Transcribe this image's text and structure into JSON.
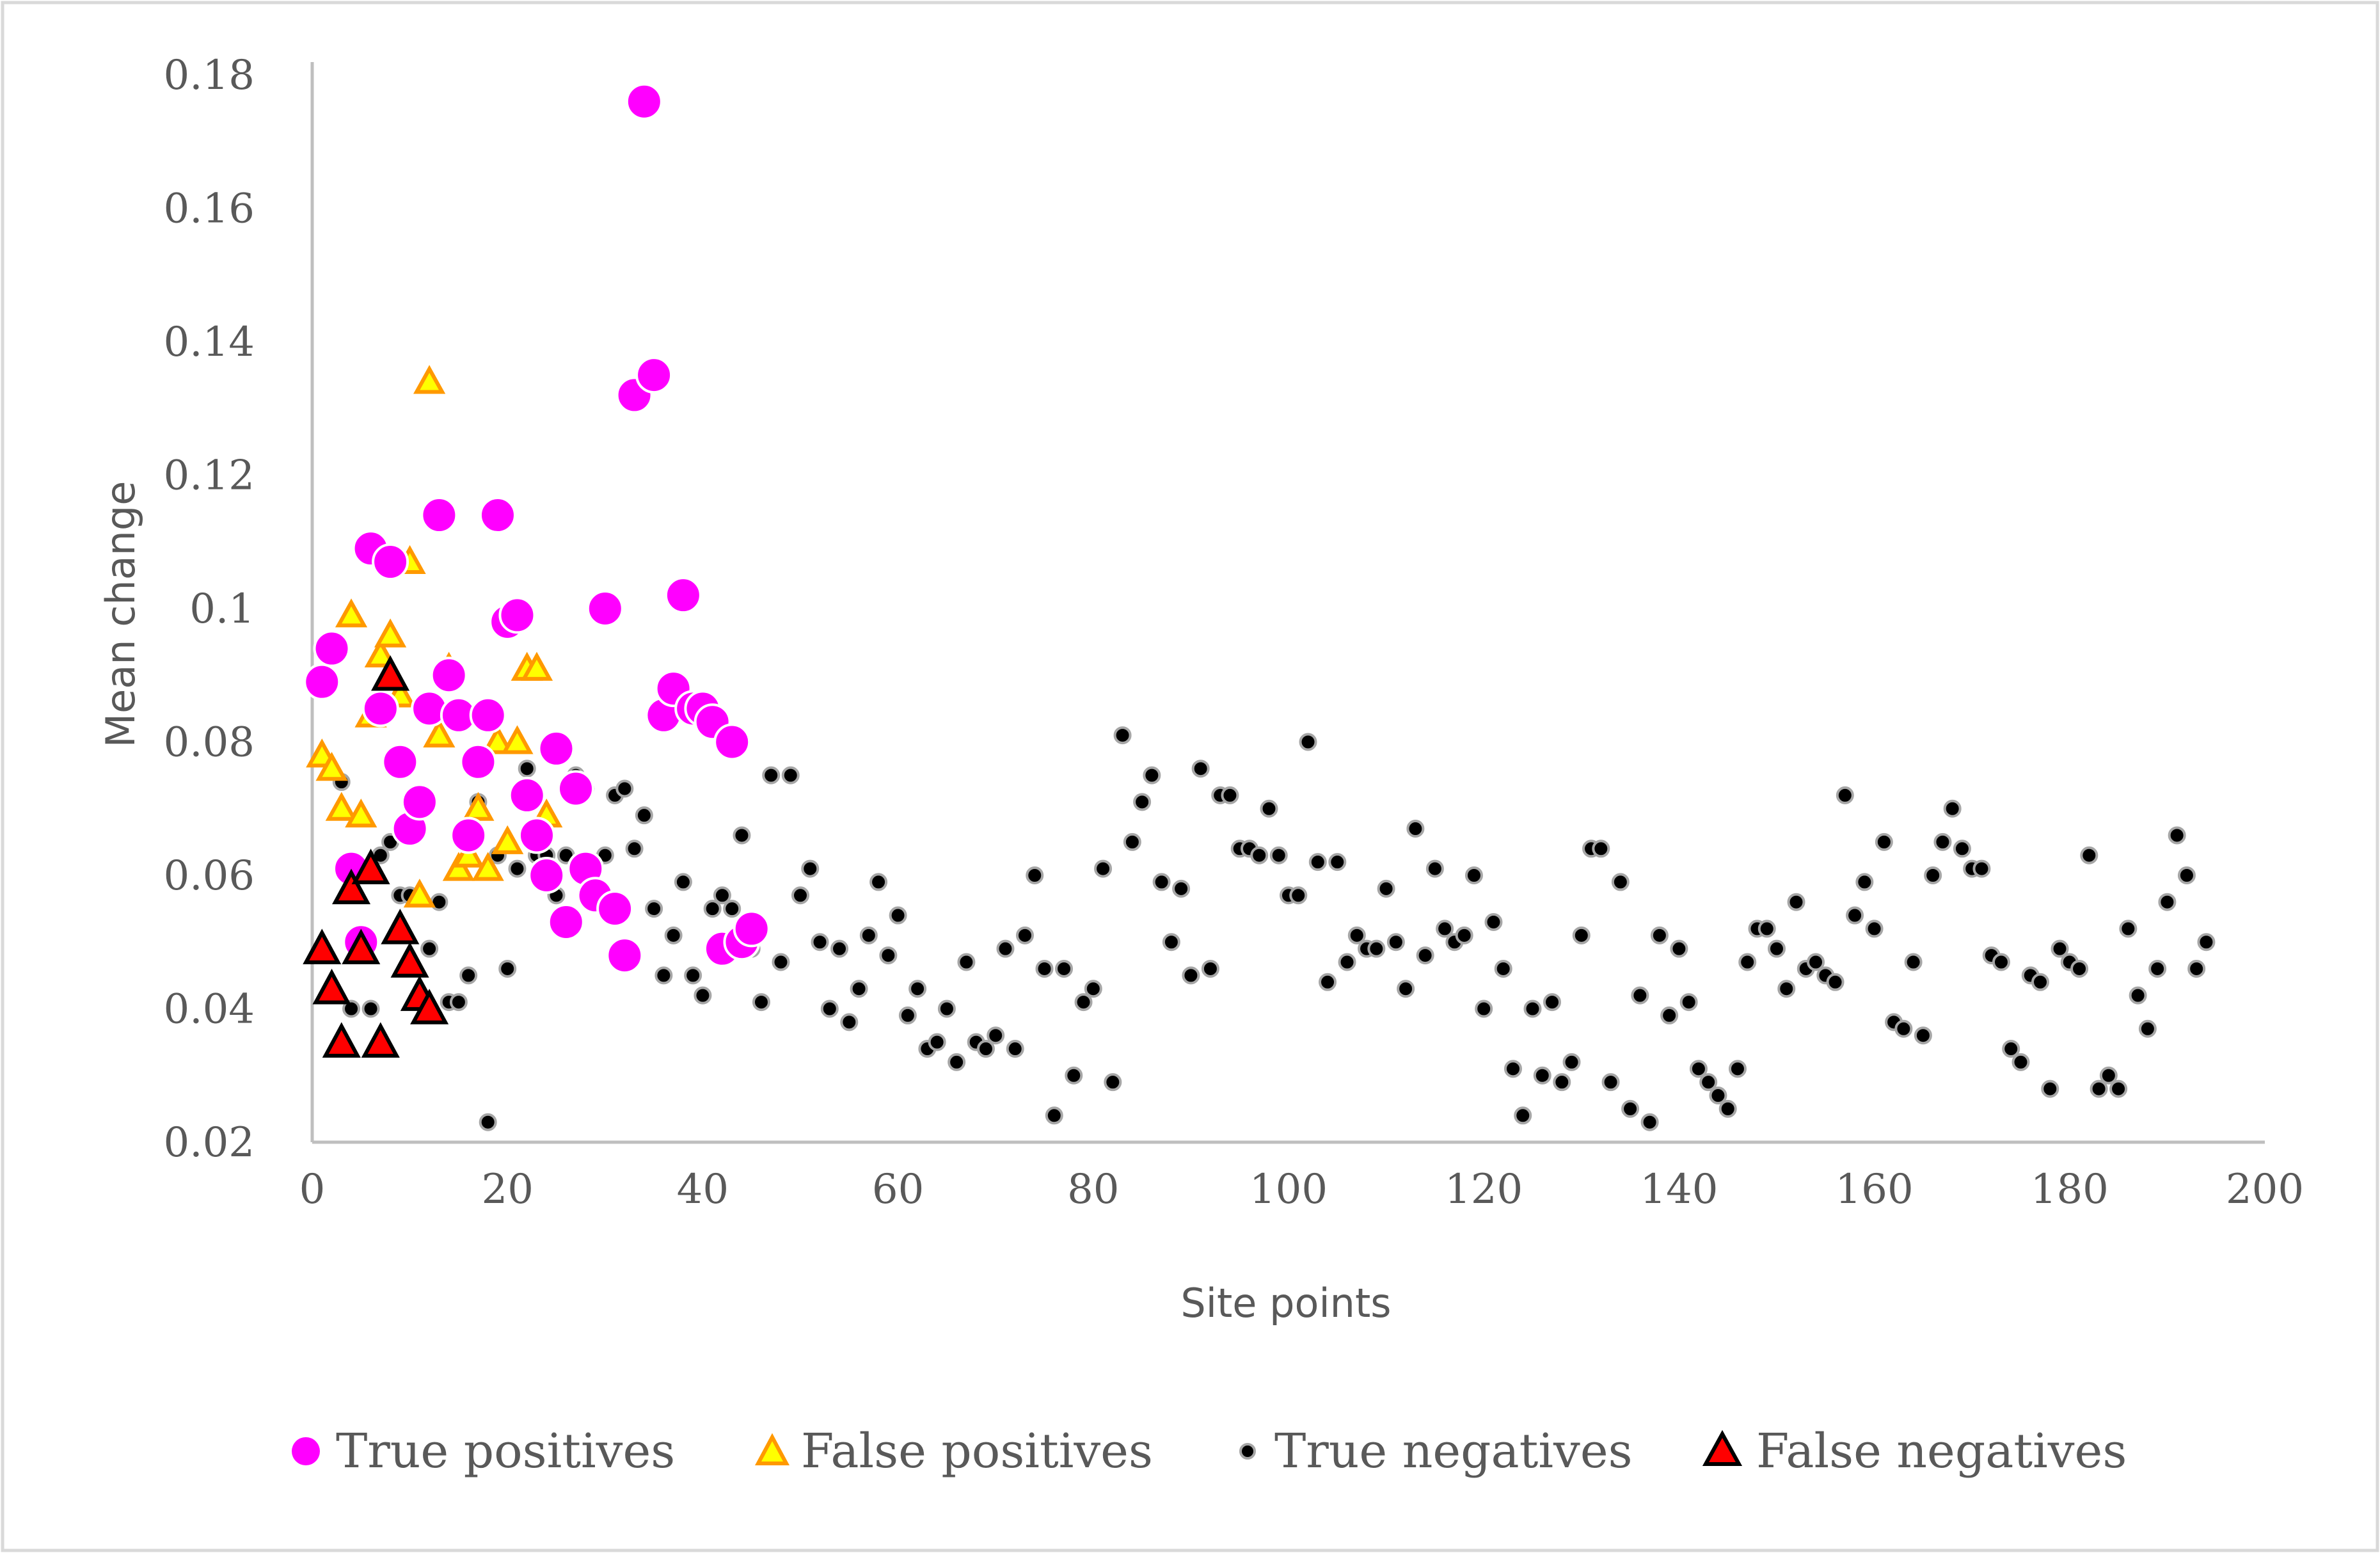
{
  "chart_data": {
    "type": "scatter",
    "title": "",
    "xlabel": "Site points",
    "ylabel": "Mean change",
    "xlim": [
      0,
      200
    ],
    "ylim": [
      0.02,
      0.18
    ],
    "xticks": [
      "0",
      "20",
      "40",
      "60",
      "80",
      "100",
      "120",
      "140",
      "160",
      "180",
      "200"
    ],
    "yticks": [
      "0.02",
      "0.04",
      "0.06",
      "0.08",
      "0.1",
      "0.12",
      "0.14",
      "0.16",
      "0.18"
    ],
    "grid": false,
    "legend_position": "bottom",
    "colors": {
      "true_positives": "#ff00ff",
      "false_positives_fill": "#ffff00",
      "false_positives_edge": "#ff9900",
      "true_negatives": "#000000",
      "false_negatives_fill": "#ff0000",
      "axis": "#bfbfbf"
    },
    "series": [
      {
        "name": "True positives",
        "marker": "circle-large",
        "points": [
          [
            1,
            0.089
          ],
          [
            2,
            0.094
          ],
          [
            4,
            0.061
          ],
          [
            5,
            0.05
          ],
          [
            6,
            0.109
          ],
          [
            7,
            0.085
          ],
          [
            8,
            0.107
          ],
          [
            9,
            0.077
          ],
          [
            10,
            0.067
          ],
          [
            11,
            0.071
          ],
          [
            12,
            0.085
          ],
          [
            13,
            0.114
          ],
          [
            14,
            0.09
          ],
          [
            15,
            0.084
          ],
          [
            16,
            0.066
          ],
          [
            17,
            0.077
          ],
          [
            18,
            0.084
          ],
          [
            19,
            0.114
          ],
          [
            20,
            0.098
          ],
          [
            21,
            0.099
          ],
          [
            22,
            0.072
          ],
          [
            23,
            0.066
          ],
          [
            24,
            0.06
          ],
          [
            25,
            0.079
          ],
          [
            26,
            0.053
          ],
          [
            27,
            0.073
          ],
          [
            28,
            0.061
          ],
          [
            29,
            0.057
          ],
          [
            30,
            0.1
          ],
          [
            31,
            0.055
          ],
          [
            32,
            0.048
          ],
          [
            33,
            0.132
          ],
          [
            34,
            0.176
          ],
          [
            35,
            0.135
          ],
          [
            36,
            0.084
          ],
          [
            37,
            0.088
          ],
          [
            38,
            0.102
          ],
          [
            39,
            0.085
          ],
          [
            40,
            0.085
          ],
          [
            41,
            0.083
          ],
          [
            42,
            0.049
          ],
          [
            43,
            0.08
          ],
          [
            44,
            0.05
          ],
          [
            45,
            0.052
          ]
        ]
      },
      {
        "name": "False positives",
        "marker": "triangle-orange",
        "points": [
          [
            1,
            0.078
          ],
          [
            2,
            0.076
          ],
          [
            3,
            0.07
          ],
          [
            4,
            0.099
          ],
          [
            5,
            0.069
          ],
          [
            6,
            0.084
          ],
          [
            7,
            0.093
          ],
          [
            8,
            0.096
          ],
          [
            9,
            0.087
          ],
          [
            10,
            0.107
          ],
          [
            11,
            0.057
          ],
          [
            12,
            0.134
          ],
          [
            13,
            0.081
          ],
          [
            14,
            0.091
          ],
          [
            15,
            0.061
          ],
          [
            16,
            0.063
          ],
          [
            17,
            0.07
          ],
          [
            18,
            0.061
          ],
          [
            19,
            0.08
          ],
          [
            20,
            0.065
          ],
          [
            21,
            0.08
          ],
          [
            22,
            0.091
          ],
          [
            23,
            0.091
          ],
          [
            24,
            0.069
          ]
        ]
      },
      {
        "name": "True negatives",
        "marker": "circle-small",
        "points": [
          [
            3,
            0.074
          ],
          [
            4,
            0.04
          ],
          [
            5,
            0.05
          ],
          [
            6,
            0.04
          ],
          [
            7,
            0.063
          ],
          [
            8,
            0.065
          ],
          [
            9,
            0.057
          ],
          [
            10,
            0.057
          ],
          [
            11,
            0.041
          ],
          [
            12,
            0.049
          ],
          [
            13,
            0.056
          ],
          [
            14,
            0.041
          ],
          [
            15,
            0.041
          ],
          [
            16,
            0.045
          ],
          [
            17,
            0.071
          ],
          [
            18,
            0.023
          ],
          [
            19,
            0.063
          ],
          [
            20,
            0.046
          ],
          [
            21,
            0.061
          ],
          [
            22,
            0.076
          ],
          [
            23,
            0.063
          ],
          [
            24,
            0.063
          ],
          [
            25,
            0.057
          ],
          [
            26,
            0.063
          ],
          [
            27,
            0.075
          ],
          [
            28,
            0.073
          ],
          [
            29,
            0.062
          ],
          [
            30,
            0.063
          ],
          [
            31,
            0.072
          ],
          [
            32,
            0.073
          ],
          [
            33,
            0.064
          ],
          [
            34,
            0.069
          ],
          [
            35,
            0.055
          ],
          [
            36,
            0.045
          ],
          [
            37,
            0.051
          ],
          [
            38,
            0.059
          ],
          [
            39,
            0.045
          ],
          [
            40,
            0.042
          ],
          [
            41,
            0.055
          ],
          [
            42,
            0.057
          ],
          [
            43,
            0.055
          ],
          [
            44,
            0.066
          ],
          [
            45,
            0.049
          ],
          [
            46,
            0.041
          ],
          [
            47,
            0.075
          ],
          [
            48,
            0.047
          ],
          [
            49,
            0.075
          ],
          [
            50,
            0.057
          ],
          [
            51,
            0.061
          ],
          [
            52,
            0.05
          ],
          [
            53,
            0.04
          ],
          [
            54,
            0.049
          ],
          [
            55,
            0.038
          ],
          [
            56,
            0.043
          ],
          [
            57,
            0.051
          ],
          [
            58,
            0.059
          ],
          [
            59,
            0.048
          ],
          [
            60,
            0.054
          ],
          [
            61,
            0.039
          ],
          [
            62,
            0.043
          ],
          [
            63,
            0.034
          ],
          [
            64,
            0.035
          ],
          [
            65,
            0.04
          ],
          [
            66,
            0.032
          ],
          [
            67,
            0.047
          ],
          [
            68,
            0.035
          ],
          [
            69,
            0.034
          ],
          [
            70,
            0.036
          ],
          [
            71,
            0.049
          ],
          [
            72,
            0.034
          ],
          [
            73,
            0.051
          ],
          [
            74,
            0.06
          ],
          [
            75,
            0.046
          ],
          [
            76,
            0.024
          ],
          [
            77,
            0.046
          ],
          [
            78,
            0.03
          ],
          [
            79,
            0.041
          ],
          [
            80,
            0.043
          ],
          [
            81,
            0.061
          ],
          [
            82,
            0.029
          ],
          [
            83,
            0.081
          ],
          [
            84,
            0.065
          ],
          [
            85,
            0.071
          ],
          [
            86,
            0.075
          ],
          [
            87,
            0.059
          ],
          [
            88,
            0.05
          ],
          [
            89,
            0.058
          ],
          [
            90,
            0.045
          ],
          [
            91,
            0.076
          ],
          [
            92,
            0.046
          ],
          [
            93,
            0.072
          ],
          [
            94,
            0.072
          ],
          [
            95,
            0.064
          ],
          [
            96,
            0.064
          ],
          [
            97,
            0.063
          ],
          [
            98,
            0.07
          ],
          [
            99,
            0.063
          ],
          [
            100,
            0.057
          ],
          [
            101,
            0.057
          ],
          [
            102,
            0.08
          ],
          [
            103,
            0.062
          ],
          [
            104,
            0.044
          ],
          [
            105,
            0.062
          ],
          [
            106,
            0.047
          ],
          [
            107,
            0.051
          ],
          [
            108,
            0.049
          ],
          [
            109,
            0.049
          ],
          [
            110,
            0.058
          ],
          [
            111,
            0.05
          ],
          [
            112,
            0.043
          ],
          [
            113,
            0.067
          ],
          [
            114,
            0.048
          ],
          [
            115,
            0.061
          ],
          [
            116,
            0.052
          ],
          [
            117,
            0.05
          ],
          [
            118,
            0.051
          ],
          [
            119,
            0.06
          ],
          [
            120,
            0.04
          ],
          [
            121,
            0.053
          ],
          [
            122,
            0.046
          ],
          [
            123,
            0.031
          ],
          [
            124,
            0.024
          ],
          [
            125,
            0.04
          ],
          [
            126,
            0.03
          ],
          [
            127,
            0.041
          ],
          [
            128,
            0.029
          ],
          [
            129,
            0.032
          ],
          [
            130,
            0.051
          ],
          [
            131,
            0.064
          ],
          [
            132,
            0.064
          ],
          [
            133,
            0.029
          ],
          [
            134,
            0.059
          ],
          [
            135,
            0.025
          ],
          [
            136,
            0.042
          ],
          [
            137,
            0.023
          ],
          [
            138,
            0.051
          ],
          [
            139,
            0.039
          ],
          [
            140,
            0.049
          ],
          [
            141,
            0.041
          ],
          [
            142,
            0.031
          ],
          [
            143,
            0.029
          ],
          [
            144,
            0.027
          ],
          [
            145,
            0.025
          ],
          [
            146,
            0.031
          ],
          [
            147,
            0.047
          ],
          [
            148,
            0.052
          ],
          [
            149,
            0.052
          ],
          [
            150,
            0.049
          ],
          [
            151,
            0.043
          ],
          [
            152,
            0.056
          ],
          [
            153,
            0.046
          ],
          [
            154,
            0.047
          ],
          [
            155,
            0.045
          ],
          [
            156,
            0.044
          ],
          [
            157,
            0.072
          ],
          [
            158,
            0.054
          ],
          [
            159,
            0.059
          ],
          [
            160,
            0.052
          ],
          [
            161,
            0.065
          ],
          [
            162,
            0.038
          ],
          [
            163,
            0.037
          ],
          [
            164,
            0.047
          ],
          [
            165,
            0.036
          ],
          [
            166,
            0.06
          ],
          [
            167,
            0.065
          ],
          [
            168,
            0.07
          ],
          [
            169,
            0.064
          ],
          [
            170,
            0.061
          ],
          [
            171,
            0.061
          ],
          [
            172,
            0.048
          ],
          [
            173,
            0.047
          ],
          [
            174,
            0.034
          ],
          [
            175,
            0.032
          ],
          [
            176,
            0.045
          ],
          [
            177,
            0.044
          ],
          [
            178,
            0.028
          ],
          [
            179,
            0.049
          ],
          [
            180,
            0.047
          ],
          [
            181,
            0.046
          ],
          [
            182,
            0.063
          ],
          [
            183,
            0.028
          ],
          [
            184,
            0.03
          ],
          [
            185,
            0.028
          ],
          [
            186,
            0.052
          ],
          [
            187,
            0.042
          ],
          [
            188,
            0.037
          ],
          [
            189,
            0.046
          ],
          [
            190,
            0.056
          ],
          [
            191,
            0.066
          ],
          [
            192,
            0.06
          ],
          [
            193,
            0.046
          ],
          [
            194,
            0.05
          ]
        ]
      },
      {
        "name": "False negatives",
        "marker": "triangle-red",
        "points": [
          [
            1,
            0.049
          ],
          [
            2,
            0.043
          ],
          [
            3,
            0.035
          ],
          [
            4,
            0.058
          ],
          [
            5,
            0.049
          ],
          [
            6,
            0.061
          ],
          [
            7,
            0.035
          ],
          [
            8,
            0.09
          ],
          [
            9,
            0.052
          ],
          [
            10,
            0.047
          ],
          [
            11,
            0.042
          ],
          [
            12,
            0.04
          ]
        ]
      }
    ]
  }
}
